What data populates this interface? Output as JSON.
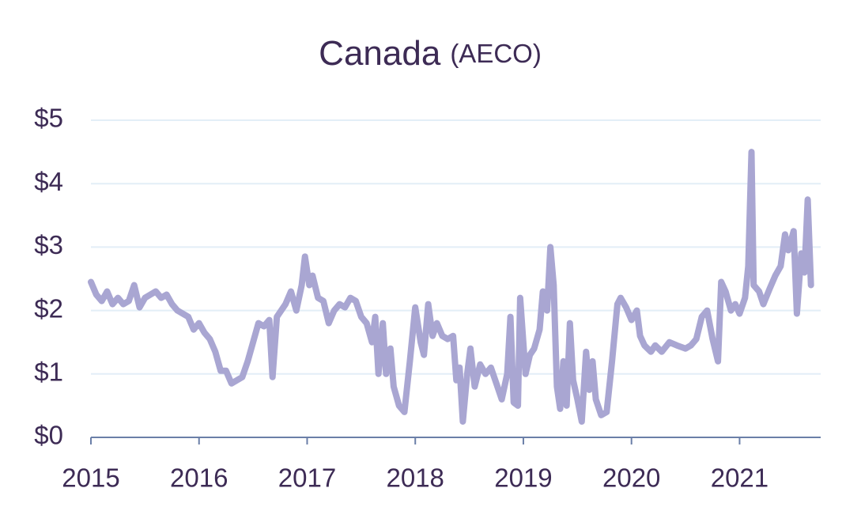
{
  "chart_data": {
    "type": "line",
    "title": "Canada",
    "subtitle": "(AECO)",
    "x": [
      2015.0,
      2015.05,
      2015.1,
      2015.15,
      2015.2,
      2015.25,
      2015.3,
      2015.35,
      2015.4,
      2015.45,
      2015.5,
      2015.55,
      2015.6,
      2015.65,
      2015.7,
      2015.75,
      2015.8,
      2015.85,
      2015.9,
      2015.95,
      2016.0,
      2016.05,
      2016.1,
      2016.15,
      2016.2,
      2016.25,
      2016.3,
      2016.35,
      2016.4,
      2016.45,
      2016.5,
      2016.55,
      2016.6,
      2016.65,
      2016.68,
      2016.72,
      2016.8,
      2016.85,
      2016.9,
      2016.95,
      2016.98,
      2017.02,
      2017.05,
      2017.1,
      2017.15,
      2017.2,
      2017.25,
      2017.3,
      2017.35,
      2017.4,
      2017.45,
      2017.5,
      2017.55,
      2017.6,
      2017.63,
      2017.66,
      2017.7,
      2017.73,
      2017.77,
      2017.8,
      2017.85,
      2017.9,
      2017.95,
      2018.0,
      2018.05,
      2018.08,
      2018.12,
      2018.16,
      2018.2,
      2018.25,
      2018.3,
      2018.35,
      2018.38,
      2018.41,
      2018.44,
      2018.48,
      2018.51,
      2018.55,
      2018.6,
      2018.65,
      2018.7,
      2018.75,
      2018.8,
      2018.85,
      2018.88,
      2018.91,
      2018.95,
      2018.97,
      2019.02,
      2019.06,
      2019.1,
      2019.15,
      2019.18,
      2019.22,
      2019.25,
      2019.28,
      2019.31,
      2019.34,
      2019.37,
      2019.4,
      2019.43,
      2019.46,
      2019.5,
      2019.54,
      2019.58,
      2019.61,
      2019.64,
      2019.67,
      2019.72,
      2019.77,
      2019.82,
      2019.87,
      2019.9,
      2019.95,
      2020.0,
      2020.05,
      2020.08,
      2020.12,
      2020.18,
      2020.22,
      2020.28,
      2020.35,
      2020.42,
      2020.5,
      2020.55,
      2020.6,
      2020.65,
      2020.7,
      2020.75,
      2020.8,
      2020.83,
      2020.87,
      2020.92,
      2020.96,
      2021.0,
      2021.05,
      2021.08,
      2021.11,
      2021.13,
      2021.18,
      2021.22,
      2021.28,
      2021.33,
      2021.38,
      2021.42,
      2021.45,
      2021.5,
      2021.53,
      2021.57,
      2021.6,
      2021.63,
      2021.66
    ],
    "series": [
      {
        "color": "#a9a6d2",
        "values": [
          2.45,
          2.25,
          2.15,
          2.3,
          2.1,
          2.2,
          2.1,
          2.15,
          2.4,
          2.05,
          2.2,
          2.25,
          2.3,
          2.2,
          2.25,
          2.1,
          2.0,
          1.95,
          1.9,
          1.7,
          1.8,
          1.65,
          1.55,
          1.35,
          1.05,
          1.05,
          0.85,
          0.9,
          0.95,
          1.2,
          1.5,
          1.8,
          1.75,
          1.85,
          0.95,
          1.9,
          2.1,
          2.3,
          2.0,
          2.4,
          2.85,
          2.4,
          2.55,
          2.2,
          2.15,
          1.8,
          2.0,
          2.1,
          2.05,
          2.2,
          2.15,
          1.9,
          1.8,
          1.5,
          1.9,
          1.0,
          1.8,
          1.0,
          1.4,
          0.8,
          0.5,
          0.4,
          1.2,
          2.05,
          1.5,
          1.3,
          2.1,
          1.6,
          1.8,
          1.6,
          1.55,
          1.6,
          0.9,
          1.1,
          0.25,
          1.0,
          1.4,
          0.8,
          1.15,
          1.0,
          1.1,
          0.85,
          0.6,
          1.0,
          1.9,
          0.55,
          0.5,
          2.2,
          1.0,
          1.3,
          1.4,
          1.7,
          2.3,
          2.0,
          3.0,
          2.4,
          0.8,
          0.45,
          1.2,
          0.5,
          1.8,
          0.9,
          0.6,
          0.25,
          1.35,
          0.75,
          1.2,
          0.6,
          0.35,
          0.4,
          1.2,
          2.1,
          2.2,
          2.05,
          1.85,
          2.0,
          1.6,
          1.45,
          1.35,
          1.45,
          1.35,
          1.5,
          1.45,
          1.4,
          1.45,
          1.55,
          1.9,
          2.0,
          1.55,
          1.2,
          2.45,
          2.3,
          2.0,
          2.1,
          1.95,
          2.2,
          2.7,
          4.5,
          2.4,
          2.3,
          2.1,
          2.35,
          2.55,
          2.7,
          3.2,
          2.95,
          3.25,
          1.95,
          2.9,
          2.6,
          3.75,
          2.4
        ]
      }
    ],
    "xlim": [
      2015,
      2021.75
    ],
    "xticks": [
      2015,
      2016,
      2017,
      2018,
      2019,
      2020,
      2021
    ],
    "ylim": [
      0,
      5
    ],
    "yticks": [
      {
        "value": 0,
        "label": "$0"
      },
      {
        "value": 1,
        "label": "$1"
      },
      {
        "value": 2,
        "label": "$2"
      },
      {
        "value": 3,
        "label": "$3"
      },
      {
        "value": 4,
        "label": "$4"
      },
      {
        "value": 5,
        "label": "$5"
      }
    ],
    "grid": true
  }
}
